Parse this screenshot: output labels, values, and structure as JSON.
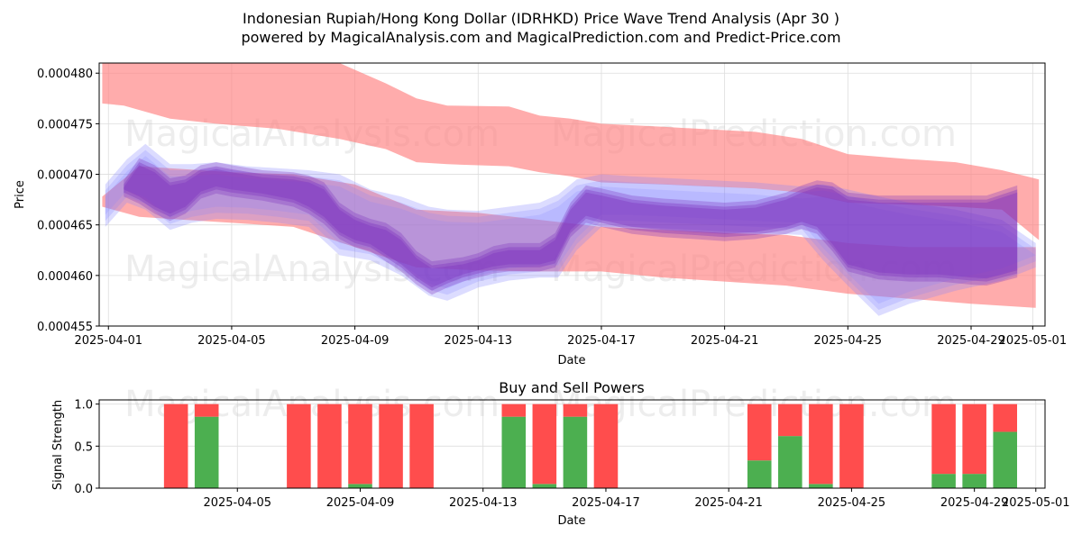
{
  "header": {
    "title_line1": "Indonesian Rupiah/Hong Kong Dollar (IDRHKD) Price Wave Trend Analysis (Apr 30 )",
    "title_line2": "powered by MagicalAnalysis.com and MagicalPrediction.com and Predict-Price.com"
  },
  "watermarks": [
    "MagicalAnalysis.com",
    "MagicalPrediction.com"
  ],
  "colors": {
    "red_band": "#ff8080",
    "blue_band": "#8080ff",
    "purple_band": "#7b2fbe",
    "buy": "#4caf50",
    "sell": "#ff4d4d"
  },
  "chart_data": [
    {
      "type": "area",
      "title": "",
      "xlabel": "Date",
      "ylabel": "Price",
      "x_domain_days": [
        -0.3,
        30.4
      ],
      "ylim": [
        0.000455,
        0.000481
      ],
      "x_ticks": [
        {
          "day": 0,
          "label": "2025-04-01"
        },
        {
          "day": 4,
          "label": "2025-04-05"
        },
        {
          "day": 8,
          "label": "2025-04-09"
        },
        {
          "day": 12,
          "label": "2025-04-13"
        },
        {
          "day": 16,
          "label": "2025-04-17"
        },
        {
          "day": 20,
          "label": "2025-04-21"
        },
        {
          "day": 24,
          "label": "2025-04-25"
        },
        {
          "day": 28,
          "label": "2025-04-29"
        },
        {
          "day": 30,
          "label": "2025-05-01"
        }
      ],
      "y_ticks": [
        {
          "value": 0.000455,
          "label": "0.000455"
        },
        {
          "value": 0.00046,
          "label": "0.000460"
        },
        {
          "value": 0.000465,
          "label": "0.000465"
        },
        {
          "value": 0.00047,
          "label": "0.000470"
        },
        {
          "value": 0.000475,
          "label": "0.000475"
        },
        {
          "value": 0.00048,
          "label": "0.000480"
        }
      ],
      "series": [
        {
          "name": "red-upper-band",
          "color": "red",
          "x": [
            -0.2,
            0.5,
            2,
            3.5,
            5.5,
            7.5,
            9,
            10,
            11,
            13,
            14,
            15,
            16,
            18,
            21,
            22.5,
            24,
            26,
            27.5,
            29,
            30.2
          ],
          "upper": [
            0.000481,
            0.000481,
            0.000481,
            0.000481,
            0.000481,
            0.000481,
            0.000479,
            0.0004775,
            0.0004768,
            0.0004767,
            0.0004758,
            0.0004755,
            0.000475,
            0.0004747,
            0.0004742,
            0.0004735,
            0.000472,
            0.0004715,
            0.0004712,
            0.0004704,
            0.0004695
          ],
          "lower": [
            0.000477,
            0.0004768,
            0.0004755,
            0.000475,
            0.0004745,
            0.0004735,
            0.0004725,
            0.0004712,
            0.000471,
            0.0004708,
            0.0004702,
            0.0004698,
            0.0004692,
            0.000469,
            0.0004686,
            0.0004682,
            0.0004672,
            0.000467,
            0.0004668,
            0.0004665,
            0.0004635
          ]
        },
        {
          "name": "red-lower-band",
          "color": "red",
          "x": [
            -0.2,
            1,
            2.5,
            4,
            6,
            8,
            10,
            12,
            14,
            16,
            18,
            20,
            22,
            24,
            26,
            28,
            30.1
          ],
          "upper": [
            0.0004678,
            0.0004708,
            0.0004705,
            0.0004702,
            0.00047,
            0.000469,
            0.0004665,
            0.0004662,
            0.0004655,
            0.0004648,
            0.0004645,
            0.0004642,
            0.000464,
            0.0004632,
            0.0004628,
            0.0004628,
            0.0004628
          ],
          "lower": [
            0.0004668,
            0.0004658,
            0.0004655,
            0.0004652,
            0.0004648,
            0.0004628,
            0.0004608,
            0.0004605,
            0.0004604,
            0.0004604,
            0.0004598,
            0.0004594,
            0.000459,
            0.0004582,
            0.0004577,
            0.0004572,
            0.0004568
          ]
        },
        {
          "name": "blue-band",
          "color": "blue",
          "x": [
            -0.1,
            0.6,
            1.2,
            2,
            2.7,
            3.5,
            4.5,
            5.5,
            6.5,
            7.5,
            8.5,
            9.5,
            10.4,
            11,
            12,
            13,
            14,
            14.6,
            15.2,
            16,
            17,
            19,
            21,
            22.5,
            23.2,
            24,
            25,
            26,
            27.5,
            29,
            30.1
          ],
          "upper": [
            0.000469,
            0.0004715,
            0.000473,
            0.000471,
            0.000471,
            0.0004712,
            0.0004708,
            0.0004706,
            0.0004704,
            0.00047,
            0.0004685,
            0.0004678,
            0.0004668,
            0.0004665,
            0.0004664,
            0.0004668,
            0.0004672,
            0.000468,
            0.0004695,
            0.00047,
            0.0004698,
            0.0004695,
            0.0004692,
            0.0004688,
            0.000469,
            0.0004685,
            0.0004678,
            0.0004672,
            0.0004665,
            0.0004655,
            0.0004632
          ],
          "lower": [
            0.0004648,
            0.0004672,
            0.0004665,
            0.0004645,
            0.0004652,
            0.0004656,
            0.0004655,
            0.0004652,
            0.0004648,
            0.000462,
            0.0004615,
            0.00046,
            0.000458,
            0.0004575,
            0.0004588,
            0.0004595,
            0.0004598,
            0.0004598,
            0.0004625,
            0.0004648,
            0.0004648,
            0.0004645,
            0.0004642,
            0.000464,
            0.0004615,
            0.000459,
            0.000456,
            0.0004572,
            0.0004585,
            0.0004595,
            0.0004608
          ]
        },
        {
          "name": "purple-band",
          "color": "purple",
          "x": [
            0.5,
            1,
            1.5,
            2,
            2.5,
            3,
            3.5,
            4,
            5,
            6,
            6.5,
            7,
            7.5,
            8,
            8.5,
            9,
            9.5,
            10,
            10.5,
            11,
            11.5,
            12,
            12.5,
            13,
            13.5,
            14,
            14.5,
            15,
            15.5,
            16,
            17,
            18,
            19,
            20,
            21,
            22,
            22.5,
            23,
            23.5,
            24,
            25,
            26,
            27,
            28,
            28.5,
            29,
            29.5
          ],
          "upper": [
            0.000469,
            0.0004712,
            0.0004705,
            0.0004692,
            0.0004695,
            0.0004705,
            0.0004708,
            0.0004705,
            0.00047,
            0.0004698,
            0.0004695,
            0.0004688,
            0.0004668,
            0.0004658,
            0.0004652,
            0.0004648,
            0.0004638,
            0.000462,
            0.000461,
            0.0004612,
            0.0004614,
            0.0004618,
            0.0004625,
            0.0004628,
            0.0004628,
            0.0004628,
            0.0004638,
            0.0004668,
            0.0004685,
            0.0004682,
            0.0004675,
            0.0004672,
            0.000467,
            0.0004668,
            0.000467,
            0.0004678,
            0.0004685,
            0.000469,
            0.0004688,
            0.0004678,
            0.0004675,
            0.0004675,
            0.0004675,
            0.0004675,
            0.0004675,
            0.000468,
            0.0004685
          ],
          "lower": [
            0.0004682,
            0.0004675,
            0.0004665,
            0.0004658,
            0.0004665,
            0.000468,
            0.0004685,
            0.0004682,
            0.0004678,
            0.0004672,
            0.0004665,
            0.0004655,
            0.000464,
            0.0004632,
            0.0004628,
            0.0004618,
            0.0004608,
            0.0004595,
            0.0004585,
            0.0004592,
            0.0004598,
            0.0004602,
            0.0004606,
            0.0004608,
            0.0004608,
            0.0004608,
            0.0004612,
            0.0004642,
            0.0004656,
            0.0004652,
            0.0004645,
            0.0004642,
            0.000464,
            0.0004638,
            0.000464,
            0.0004645,
            0.000465,
            0.0004645,
            0.0004628,
            0.0004608,
            0.00046,
            0.0004598,
            0.0004598,
            0.0004595,
            0.0004594,
            0.0004598,
            0.0004602
          ]
        }
      ]
    },
    {
      "type": "bar",
      "title": "Buy and Sell Powers",
      "xlabel": "Date",
      "ylabel": "Signal Strength",
      "x_domain_days": [
        -0.5,
        30.3
      ],
      "ylim": [
        0,
        1.05
      ],
      "x_ticks": [
        {
          "day": 4,
          "label": "2025-04-05"
        },
        {
          "day": 8,
          "label": "2025-04-09"
        },
        {
          "day": 12,
          "label": "2025-04-13"
        },
        {
          "day": 16,
          "label": "2025-04-17"
        },
        {
          "day": 20,
          "label": "2025-04-21"
        },
        {
          "day": 24,
          "label": "2025-04-25"
        },
        {
          "day": 28,
          "label": "2025-04-29"
        },
        {
          "day": 30,
          "label": "2025-05-01"
        }
      ],
      "y_ticks": [
        {
          "value": 0,
          "label": "0.0"
        },
        {
          "value": 0.5,
          "label": "0.5"
        },
        {
          "value": 1,
          "label": "1.0"
        }
      ],
      "bars": [
        {
          "day": 2,
          "buy": 0.0,
          "sell": 1.0
        },
        {
          "day": 3,
          "buy": 0.85,
          "sell": 0.15
        },
        {
          "day": 6,
          "buy": 0.0,
          "sell": 1.0
        },
        {
          "day": 7,
          "buy": 0.0,
          "sell": 1.0
        },
        {
          "day": 8,
          "buy": 0.05,
          "sell": 0.95
        },
        {
          "day": 9,
          "buy": 0.0,
          "sell": 1.0
        },
        {
          "day": 10,
          "buy": 0.0,
          "sell": 1.0
        },
        {
          "day": 13,
          "buy": 0.85,
          "sell": 0.15
        },
        {
          "day": 14,
          "buy": 0.05,
          "sell": 0.95
        },
        {
          "day": 15,
          "buy": 0.85,
          "sell": 0.15
        },
        {
          "day": 16,
          "buy": 0.0,
          "sell": 1.0
        },
        {
          "day": 21,
          "buy": 0.33,
          "sell": 0.67
        },
        {
          "day": 22,
          "buy": 0.62,
          "sell": 0.38
        },
        {
          "day": 23,
          "buy": 0.05,
          "sell": 0.95
        },
        {
          "day": 24,
          "buy": 0.0,
          "sell": 1.0
        },
        {
          "day": 27,
          "buy": 0.17,
          "sell": 0.83
        },
        {
          "day": 28,
          "buy": 0.17,
          "sell": 0.83
        },
        {
          "day": 29,
          "buy": 0.67,
          "sell": 0.33
        }
      ]
    }
  ]
}
